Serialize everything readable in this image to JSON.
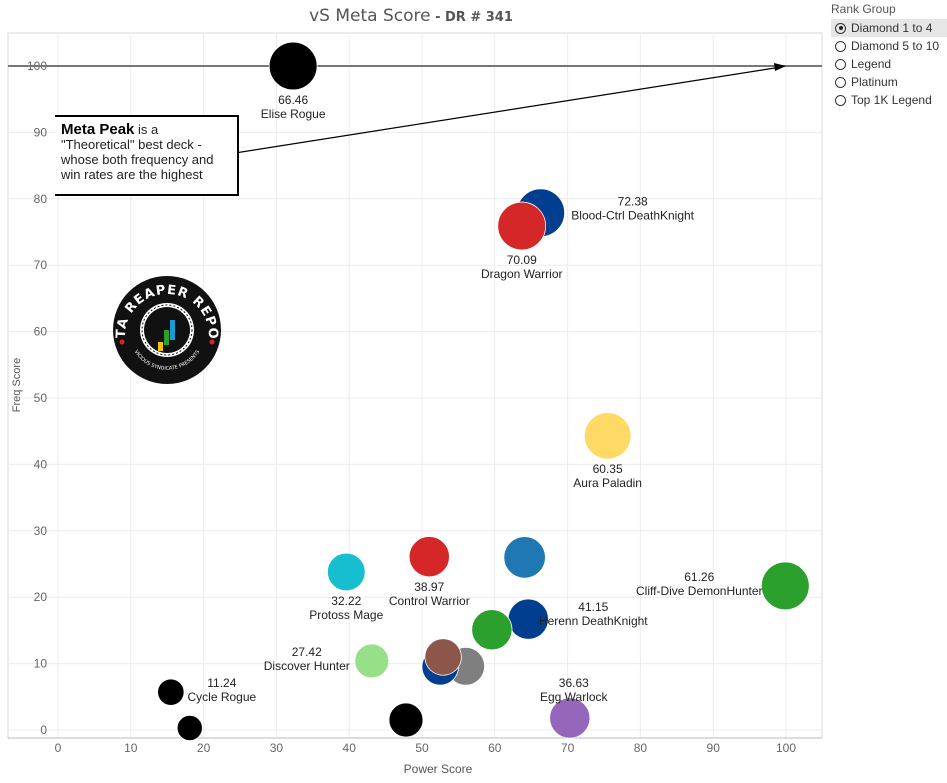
{
  "title": {
    "main": "vS Meta Score",
    "separator": " - ",
    "sub": "DR # 341"
  },
  "legend": {
    "title": "Rank Group",
    "items": [
      {
        "label": "Diamond 1 to 4",
        "selected": true
      },
      {
        "label": "Diamond 5 to 10",
        "selected": false
      },
      {
        "label": "Legend",
        "selected": false
      },
      {
        "label": "Platinum",
        "selected": false
      },
      {
        "label": "Top 1K Legend",
        "selected": false
      }
    ]
  },
  "annotation": {
    "bold": "Meta Peak",
    "rest": " is a \"Theoretical\" best deck - whose both frequency and win rates are the highest"
  },
  "logo": {
    "text_top": "DATA REAPER REPORT",
    "text_bottom": "VICIOUS SYNDICATE PRESENTS"
  },
  "chart_data": {
    "type": "scatter",
    "xlabel": "Power Score",
    "ylabel": "Freq Score",
    "xlim": [
      0,
      105
    ],
    "ylim": [
      -1,
      105
    ],
    "xticks": [
      0,
      10,
      20,
      30,
      40,
      50,
      60,
      70,
      80,
      90,
      100
    ],
    "yticks": [
      0,
      10,
      20,
      30,
      40,
      50,
      60,
      70,
      80,
      90,
      100
    ],
    "grid": true,
    "reference_line_y": 100,
    "arrow_to": [
      100,
      100
    ],
    "points": [
      {
        "x": 32.3,
        "y": 100,
        "size": 1.9,
        "color": "#000000",
        "score": "66.46",
        "name": "Elise Rogue",
        "label_pos": "below"
      },
      {
        "x": 66.3,
        "y": 77.9,
        "size": 1.9,
        "color": "#003f8f",
        "score": "72.38",
        "name": "Blood-Ctrl DeathKnight",
        "label_pos": "right"
      },
      {
        "x": 63.7,
        "y": 75.9,
        "size": 1.9,
        "color": "#d62728",
        "score": "70.09",
        "name": "Dragon Warrior",
        "label_pos": "below"
      },
      {
        "x": 75.5,
        "y": 44.3,
        "size": 1.85,
        "color": "#ffd966",
        "score": "60.35",
        "name": "Aura Paladin",
        "label_pos": "below"
      },
      {
        "x": 99.9,
        "y": 21.7,
        "size": 1.9,
        "color": "#2ca02c",
        "score": "61.26",
        "name": "Cliff-Dive DemonHunter",
        "label_pos": "left"
      },
      {
        "x": 64.1,
        "y": 26.0,
        "size": 1.65,
        "color": "#1f77b4",
        "score": "",
        "name": ""
      },
      {
        "x": 51.0,
        "y": 26.1,
        "size": 1.6,
        "color": "#d62728",
        "score": "38.97",
        "name": "Control Warrior",
        "label_pos": "below"
      },
      {
        "x": 39.6,
        "y": 23.8,
        "size": 1.5,
        "color": "#17becf",
        "score": "32.22",
        "name": "Protoss Mage",
        "label_pos": "below"
      },
      {
        "x": 64.6,
        "y": 16.7,
        "size": 1.6,
        "color": "#003f8f",
        "score": "41.15",
        "name": "Herenn DeathKnight",
        "label_pos": "right"
      },
      {
        "x": 59.6,
        "y": 15.1,
        "size": 1.6,
        "color": "#2ca02c",
        "score": "",
        "name": ""
      },
      {
        "x": 43.1,
        "y": 10.4,
        "size": 1.35,
        "color": "#98df8a",
        "score": "27.42",
        "name": "Discover Hunter",
        "label_pos": "left"
      },
      {
        "x": 56.0,
        "y": 9.6,
        "size": 1.5,
        "color": "#7f7f7f",
        "score": "",
        "name": ""
      },
      {
        "x": 52.5,
        "y": 9.5,
        "size": 1.45,
        "color": "#003f8f",
        "score": "",
        "name": ""
      },
      {
        "x": 52.9,
        "y": 11.0,
        "size": 1.45,
        "color": "#8c564b",
        "score": "",
        "name": ""
      },
      {
        "x": 70.3,
        "y": 1.8,
        "size": 1.6,
        "color": "#9467bd",
        "score": "36.63",
        "name": "Egg Warlock",
        "label_pos": "above"
      },
      {
        "x": 47.8,
        "y": 1.5,
        "size": 1.35,
        "color": "#000000",
        "score": "",
        "name": ""
      },
      {
        "x": 15.5,
        "y": 5.7,
        "size": 1.05,
        "color": "#000000",
        "score": "11.24",
        "name": "Cycle Rogue",
        "label_pos": "right"
      },
      {
        "x": 18.1,
        "y": 0.3,
        "size": 1.0,
        "color": "#000000",
        "score": "",
        "name": ""
      }
    ]
  }
}
